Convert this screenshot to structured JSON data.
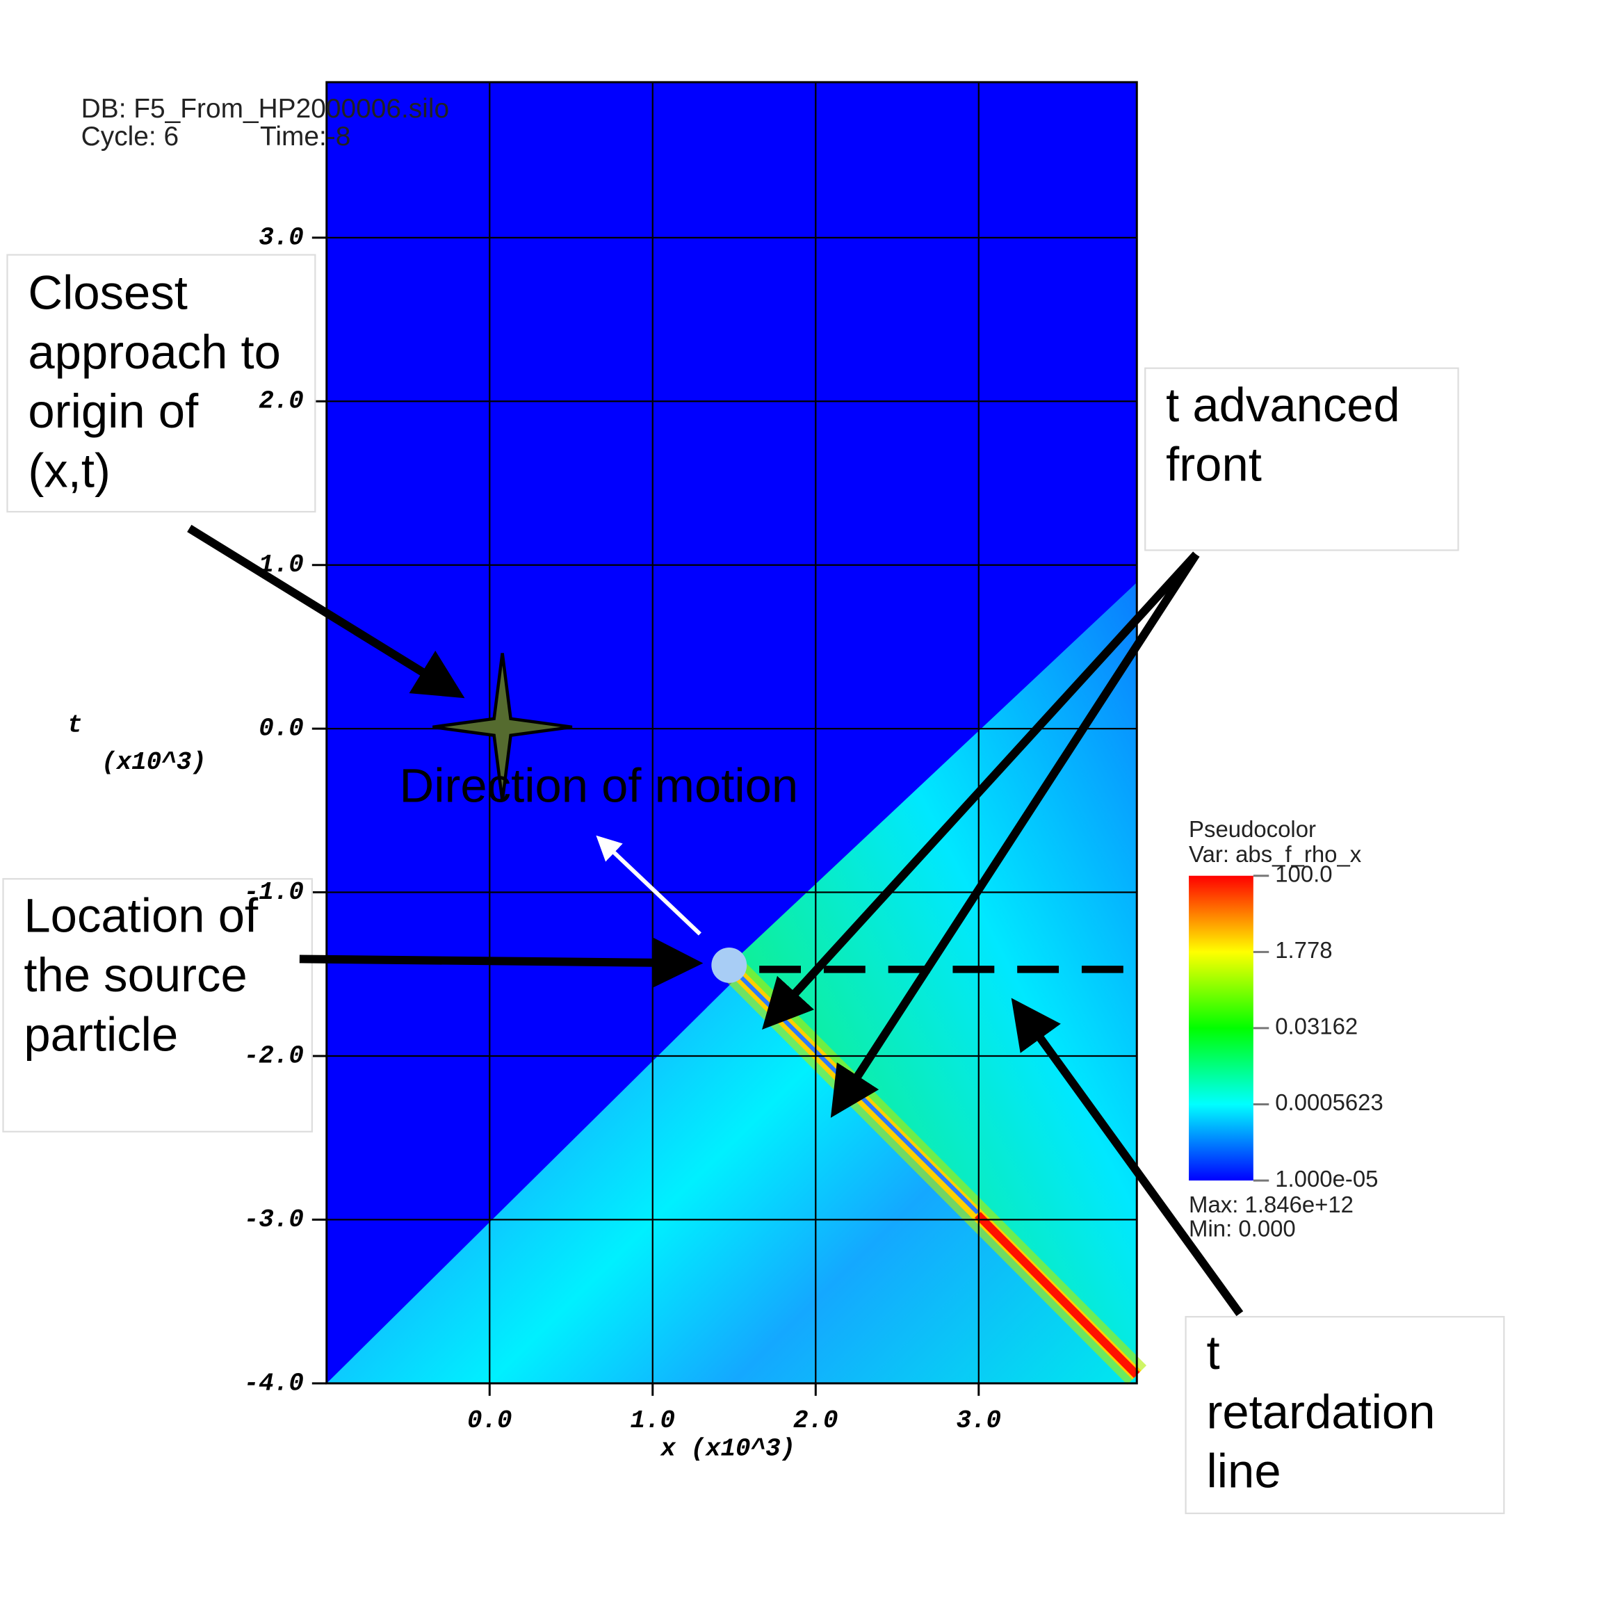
{
  "chart_data": {
    "type": "heatmap",
    "db_label": "DB: F5_From_HP2000006.silo",
    "cycle_label": "Cycle: 6",
    "time_label": "Time:-8",
    "xlabel": "x  (x10^3)",
    "ylabel": "t",
    "ylabel_units": "(x10^3)",
    "xlim": [
      -1.0,
      3.97
    ],
    "ylim": [
      -4.0,
      3.95
    ],
    "xticks": [
      {
        "value": 0,
        "label": "0.0"
      },
      {
        "value": 1,
        "label": "1.0"
      },
      {
        "value": 2,
        "label": "2.0"
      },
      {
        "value": 3,
        "label": "3.0"
      }
    ],
    "yticks": [
      {
        "value": 3,
        "label": "3.0"
      },
      {
        "value": 2,
        "label": "2.0"
      },
      {
        "value": 1,
        "label": "1.0"
      },
      {
        "value": 0,
        "label": "0.0"
      },
      {
        "value": -1,
        "label": "-1.0"
      },
      {
        "value": -2,
        "label": "-2.0"
      },
      {
        "value": -3,
        "label": "-3.0"
      },
      {
        "value": -4,
        "label": "-4.0"
      }
    ],
    "grid": true,
    "colorbar": {
      "title": "Pseudocolor",
      "variable": "Var: abs_f_rho_x",
      "scale": "log",
      "lim": [
        1e-05,
        100
      ],
      "ticks": [
        {
          "value": 100,
          "label": "100.0"
        },
        1.778,
        0.03162,
        0.0005623,
        {
          "value": 1e-05,
          "label": "1.000e-05"
        }
      ],
      "colors": [
        "#0000ff",
        "#00ffff",
        "#00ff00",
        "#ffff00",
        "#ff0000"
      ],
      "max_label": "Max:  1.846e+12",
      "min_label": "Min: 0.000"
    },
    "annotations": [
      {
        "lines": [
          "Closest",
          "approach to",
          "origin of",
          "(x,t)"
        ]
      },
      {
        "lines": [
          "t advanced",
          "front"
        ]
      },
      {
        "lines": [
          "Location of",
          "the source",
          "particle"
        ]
      },
      {
        "lines": [
          "t",
          "retardation",
          "line"
        ]
      },
      {
        "lines": [
          "Direction of motion"
        ]
      }
    ]
  }
}
